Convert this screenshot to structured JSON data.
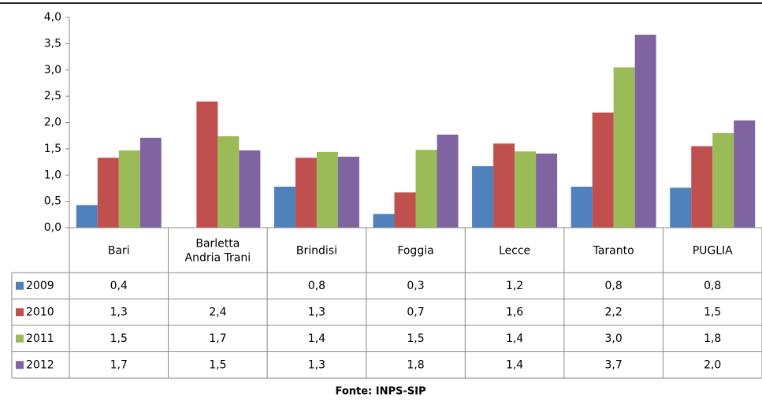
{
  "chart_data": {
    "type": "bar",
    "categories": [
      "Bari",
      "Barletta\nAndria Trani",
      "Brindisi",
      "Foggia",
      "Lecce",
      "Taranto",
      "PUGLIA"
    ],
    "series": [
      {
        "name": "2009",
        "color": "#4f81bd",
        "values": [
          0.43,
          null,
          0.78,
          0.26,
          1.17,
          0.78,
          0.76
        ],
        "value_labels": [
          "0,4",
          null,
          "0,8",
          "0,3",
          "1,2",
          "0,8",
          "0,8"
        ]
      },
      {
        "name": "2010",
        "color": "#c0504d",
        "values": [
          1.33,
          2.4,
          1.33,
          0.67,
          1.6,
          2.19,
          1.55
        ],
        "value_labels": [
          "1,3",
          "2,4",
          "1,3",
          "0,7",
          "1,6",
          "2,2",
          "1,5"
        ]
      },
      {
        "name": "2011",
        "color": "#9bbb59",
        "values": [
          1.47,
          1.74,
          1.44,
          1.48,
          1.45,
          3.05,
          1.8
        ],
        "value_labels": [
          "1,5",
          "1,7",
          "1,4",
          "1,5",
          "1,4",
          "3,0",
          "1,8"
        ]
      },
      {
        "name": "2012",
        "color": "#8064a2",
        "values": [
          1.71,
          1.47,
          1.35,
          1.77,
          1.41,
          3.67,
          2.04
        ],
        "value_labels": [
          "1,7",
          "1,5",
          "1,3",
          "1,8",
          "1,4",
          "3,7",
          "2,0"
        ]
      }
    ],
    "ylim": [
      0,
      4
    ],
    "yticks": [
      {
        "value": 0,
        "label": "0,0"
      },
      {
        "value": 0.5,
        "label": "0,5"
      },
      {
        "value": 1,
        "label": "1,0"
      },
      {
        "value": 1.5,
        "label": "1,5"
      },
      {
        "value": 2,
        "label": "2,0"
      },
      {
        "value": 2.5,
        "label": "2,5"
      },
      {
        "value": 3,
        "label": "3,0"
      },
      {
        "value": 3.5,
        "label": "3,5"
      },
      {
        "value": 4,
        "label": "4,0"
      }
    ],
    "grid": false,
    "source": "Fonte: INPS-SIP"
  }
}
